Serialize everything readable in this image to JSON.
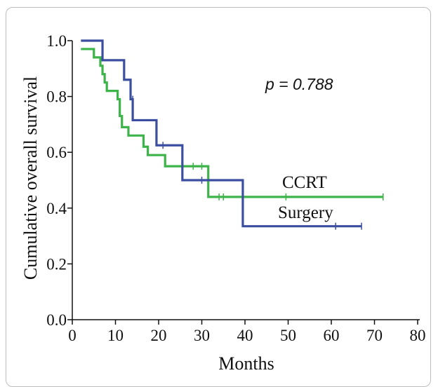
{
  "chart_data": {
    "type": "line",
    "xlabel": "Months",
    "ylabel": "Cumulative overall survival",
    "xlim": [
      0,
      80
    ],
    "ylim": [
      0,
      1.0
    ],
    "x_ticks": [
      "0",
      "10",
      "20",
      "30",
      "40",
      "50",
      "60",
      "70",
      "80"
    ],
    "y_ticks": [
      "0.0",
      "0.2",
      "0.4",
      "0.6",
      "0.8",
      "1.0"
    ],
    "annotation": "p = 0.788",
    "series": [
      {
        "name": "CCRT",
        "color": "#3cb449",
        "steps": [
          [
            2,
            0.97
          ],
          [
            5,
            0.94
          ],
          [
            6.5,
            0.91
          ],
          [
            7,
            0.88
          ],
          [
            7.5,
            0.85
          ],
          [
            8,
            0.82
          ],
          [
            10.5,
            0.79
          ],
          [
            11,
            0.73
          ],
          [
            11.5,
            0.69
          ],
          [
            13,
            0.66
          ],
          [
            16.5,
            0.62
          ],
          [
            17.5,
            0.59
          ],
          [
            21.5,
            0.55
          ],
          [
            31.5,
            0.44
          ],
          [
            72,
            0.44
          ]
        ],
        "censored": [
          [
            28,
            0.55
          ],
          [
            30,
            0.55
          ],
          [
            34,
            0.44
          ],
          [
            35,
            0.44
          ],
          [
            49.5,
            0.44
          ],
          [
            72,
            0.44
          ]
        ]
      },
      {
        "name": "Surgery",
        "color": "#3b4ea0",
        "steps": [
          [
            2,
            1.0
          ],
          [
            7,
            0.93
          ],
          [
            12,
            0.86
          ],
          [
            13.5,
            0.79
          ],
          [
            14,
            0.715
          ],
          [
            19.5,
            0.625
          ],
          [
            25.5,
            0.5
          ],
          [
            39.5,
            0.335
          ],
          [
            67,
            0.335
          ]
        ],
        "censored": [
          [
            14,
            0.79
          ],
          [
            21,
            0.625
          ],
          [
            30,
            0.5
          ],
          [
            61,
            0.335
          ],
          [
            67,
            0.335
          ]
        ]
      }
    ]
  }
}
